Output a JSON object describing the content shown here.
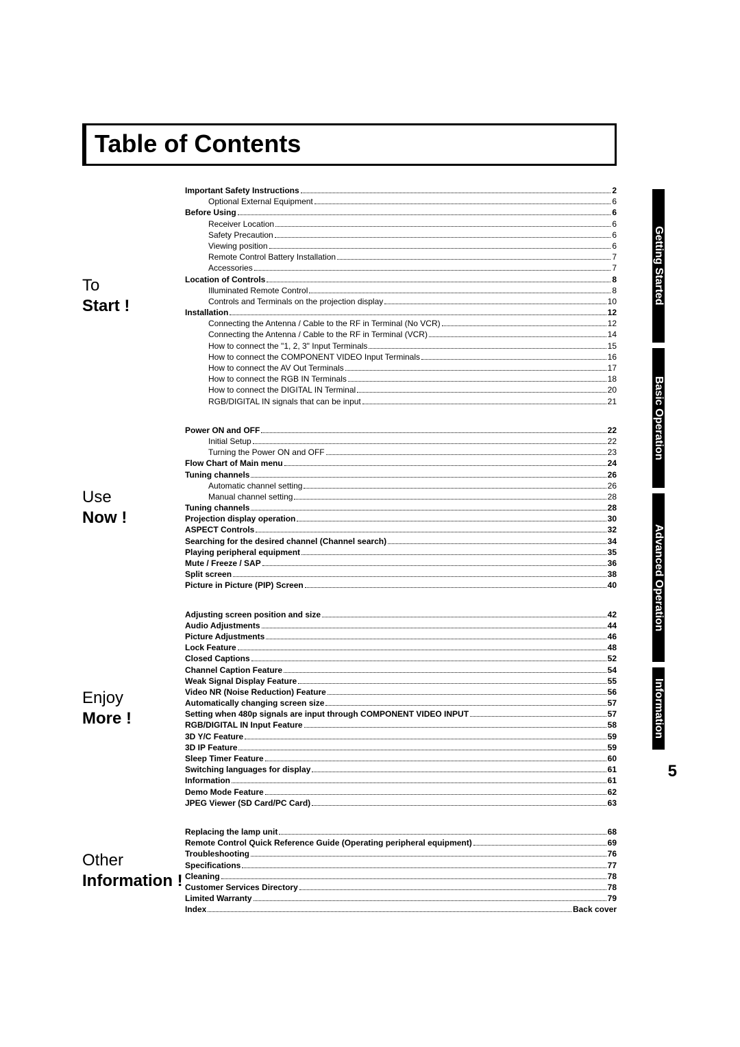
{
  "title": "Table of Contents",
  "page_number": "5",
  "tabs": [
    {
      "label": "Getting Started"
    },
    {
      "label": "Basic Operation"
    },
    {
      "label": "Advanced Operation"
    },
    {
      "label": "Information"
    }
  ],
  "sections": [
    {
      "label_top": "To",
      "label_bottom": "Start !",
      "items": [
        {
          "lvl": 0,
          "label": "Important Safety Instructions",
          "page": "2"
        },
        {
          "lvl": 1,
          "label": "Optional External Equipment",
          "page": "6"
        },
        {
          "lvl": 0,
          "label": "Before Using",
          "page": "6"
        },
        {
          "lvl": 1,
          "label": "Receiver Location",
          "page": "6"
        },
        {
          "lvl": 1,
          "label": "Safety Precaution",
          "page": "6"
        },
        {
          "lvl": 1,
          "label": "Viewing position",
          "page": "6"
        },
        {
          "lvl": 1,
          "label": "Remote Control Battery Installation",
          "page": "7"
        },
        {
          "lvl": 1,
          "label": "Accessories",
          "page": "7"
        },
        {
          "lvl": 0,
          "label": "Location of Controls",
          "page": "8"
        },
        {
          "lvl": 1,
          "label": "Illuminated Remote Control",
          "page": "8"
        },
        {
          "lvl": 1,
          "label": "Controls and Terminals on the projection display",
          "page": "10"
        },
        {
          "lvl": 0,
          "label": "Installation",
          "page": "12"
        },
        {
          "lvl": 1,
          "label": "Connecting the Antenna / Cable to the RF in Terminal (No VCR)",
          "page": "12"
        },
        {
          "lvl": 1,
          "label": "Connecting the Antenna / Cable to the RF in Terminal (VCR)",
          "page": "14"
        },
        {
          "lvl": 1,
          "label": "How to connect the \"1, 2, 3\" Input Terminals",
          "page": "15"
        },
        {
          "lvl": 1,
          "label": "How to connect the COMPONENT VIDEO Input Terminals",
          "page": "16"
        },
        {
          "lvl": 1,
          "label": "How to connect the AV Out Terminals",
          "page": "17"
        },
        {
          "lvl": 1,
          "label": "How to connect the RGB IN Terminals",
          "page": "18"
        },
        {
          "lvl": 1,
          "label": "How to connect the DIGITAL IN Terminal",
          "page": "20"
        },
        {
          "lvl": 1,
          "label": "RGB/DIGITAL IN signals that can be input",
          "page": "21"
        }
      ]
    },
    {
      "label_top": "Use",
      "label_bottom": "Now !",
      "items": [
        {
          "lvl": 0,
          "label": "Power ON and OFF",
          "page": "22"
        },
        {
          "lvl": 1,
          "label": "Initial Setup",
          "page": "22"
        },
        {
          "lvl": 1,
          "label": "Turning the Power ON and OFF",
          "page": "23"
        },
        {
          "lvl": 0,
          "label": "Flow Chart of Main menu",
          "page": "24"
        },
        {
          "lvl": 0,
          "label": "Tuning channels",
          "page": "26"
        },
        {
          "lvl": 1,
          "label": "Automatic channel setting",
          "page": "26"
        },
        {
          "lvl": 1,
          "label": "Manual channel setting",
          "page": "28"
        },
        {
          "lvl": 0,
          "label": "Tuning channels",
          "page": "28"
        },
        {
          "lvl": 0,
          "label": "Projection display operation",
          "page": "30"
        },
        {
          "lvl": 0,
          "label": "ASPECT Controls",
          "page": "32"
        },
        {
          "lvl": 0,
          "label": "Searching for the desired channel (Channel search)",
          "page": "34"
        },
        {
          "lvl": 0,
          "label": "Playing peripheral equipment",
          "page": "35"
        },
        {
          "lvl": 0,
          "label": "Mute / Freeze / SAP",
          "page": "36"
        },
        {
          "lvl": 0,
          "label": "Split screen",
          "page": "38"
        },
        {
          "lvl": 0,
          "label": "Picture in Picture (PIP) Screen",
          "page": "40"
        }
      ]
    },
    {
      "label_top": "Enjoy",
      "label_bottom": "More !",
      "items": [
        {
          "lvl": 0,
          "label": "Adjusting screen position and size",
          "page": "42"
        },
        {
          "lvl": 0,
          "label": "Audio Adjustments",
          "page": "44"
        },
        {
          "lvl": 0,
          "label": "Picture Adjustments",
          "page": "46"
        },
        {
          "lvl": 0,
          "label": "Lock Feature",
          "page": "48"
        },
        {
          "lvl": 0,
          "label": "Closed Captions",
          "page": "52"
        },
        {
          "lvl": 0,
          "label": "Channel Caption Feature",
          "page": "54"
        },
        {
          "lvl": 0,
          "label": "Weak Signal Display Feature",
          "page": "55"
        },
        {
          "lvl": 0,
          "label": "Video NR (Noise Reduction) Feature",
          "page": "56"
        },
        {
          "lvl": 0,
          "label": "Automatically changing screen size",
          "page": "57"
        },
        {
          "lvl": 0,
          "label": "Setting when 480p signals are input through COMPONENT VIDEO INPUT",
          "page": "57"
        },
        {
          "lvl": 0,
          "label": "RGB/DIGITAL IN Input Feature",
          "page": "58"
        },
        {
          "lvl": 0,
          "label": "3D Y/C Feature",
          "page": "59"
        },
        {
          "lvl": 0,
          "label": "3D IP Feature",
          "page": "59"
        },
        {
          "lvl": 0,
          "label": "Sleep Timer Feature",
          "page": "60"
        },
        {
          "lvl": 0,
          "label": "Switching languages for display",
          "page": "61"
        },
        {
          "lvl": 0,
          "label": "Information",
          "page": "61"
        },
        {
          "lvl": 0,
          "label": "Demo Mode Feature",
          "page": "62"
        },
        {
          "lvl": 0,
          "label": "JPEG Viewer (SD Card/PC Card)",
          "page": "63"
        }
      ]
    },
    {
      "label_top": "Other",
      "label_bottom": "Information !",
      "items": [
        {
          "lvl": 0,
          "label": "Replacing the lamp unit",
          "page": "68"
        },
        {
          "lvl": 0,
          "label": "Remote Control Quick Reference Guide (Operating peripheral equipment)",
          "page": "69"
        },
        {
          "lvl": 0,
          "label": "Troubleshooting",
          "page": "76"
        },
        {
          "lvl": 0,
          "label": "Specifications",
          "page": "77"
        },
        {
          "lvl": 0,
          "label": "Cleaning",
          "page": "78"
        },
        {
          "lvl": 0,
          "label": "Customer Services Directory",
          "page": "78"
        },
        {
          "lvl": 0,
          "label": "Limited Warranty",
          "page": "79"
        },
        {
          "lvl": 0,
          "label": "Index",
          "page": "Back cover"
        }
      ]
    }
  ]
}
